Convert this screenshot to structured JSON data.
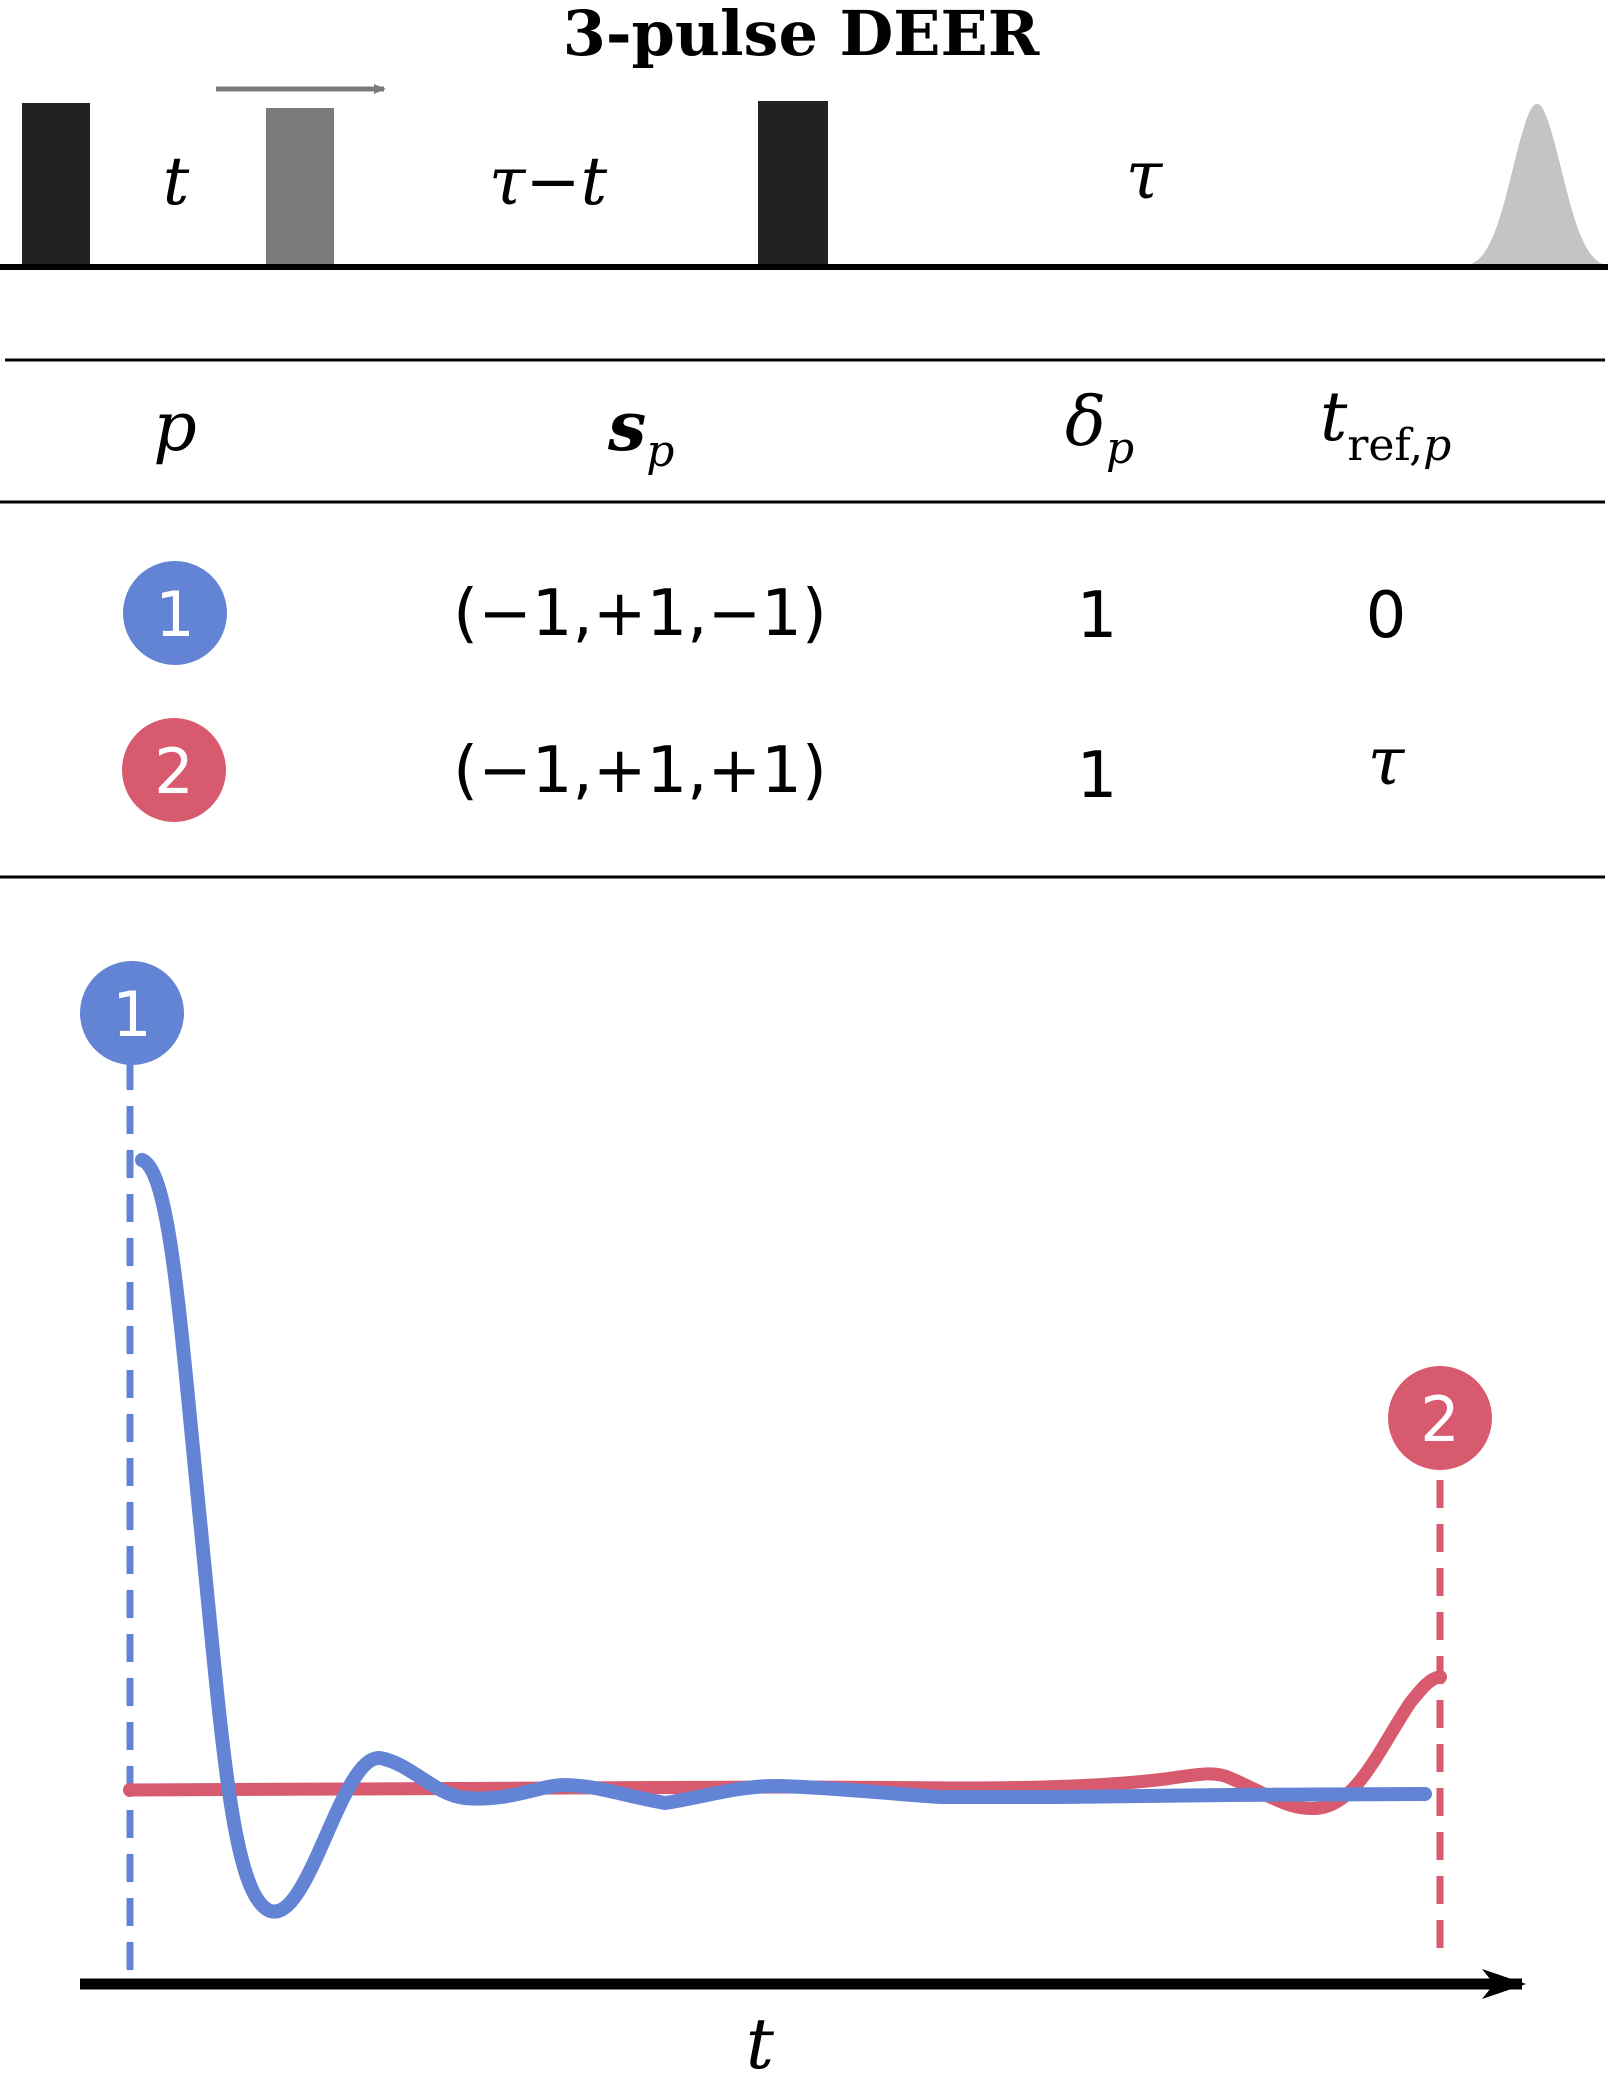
{
  "title": "3-pulse DEER",
  "sequence": {
    "delay_labels": [
      "t",
      "τ−t",
      "τ"
    ],
    "pulses": [
      {
        "name": "first-pump",
        "color": "#222222"
      },
      {
        "name": "pump-movable",
        "color": "#7b7b7b"
      },
      {
        "name": "second-pump",
        "color": "#222222"
      }
    ],
    "echo_color": "#c4c4c4",
    "arrow_color": "#7b7b7b"
  },
  "table": {
    "headers": {
      "p": "p",
      "s_main": "s",
      "s_sub": "p",
      "delta_main": "δ",
      "delta_sub": "p",
      "tref_main": "t",
      "tref_sub_ref": "ref,",
      "tref_sub_p": "p"
    },
    "rows": [
      {
        "p": "1",
        "s": "(−1,+1,−1)",
        "delta": "1",
        "tref": "0",
        "color": "#6383d4"
      },
      {
        "p": "2",
        "s": "(−1,+1,+1)",
        "delta": "1",
        "tref": "τ",
        "color": "#d85a6e"
      }
    ]
  },
  "plot": {
    "xlabel": "t",
    "markers": [
      "1",
      "2"
    ],
    "colors": {
      "pathway1": "#6383d4",
      "pathway2": "#d85a6e"
    }
  }
}
